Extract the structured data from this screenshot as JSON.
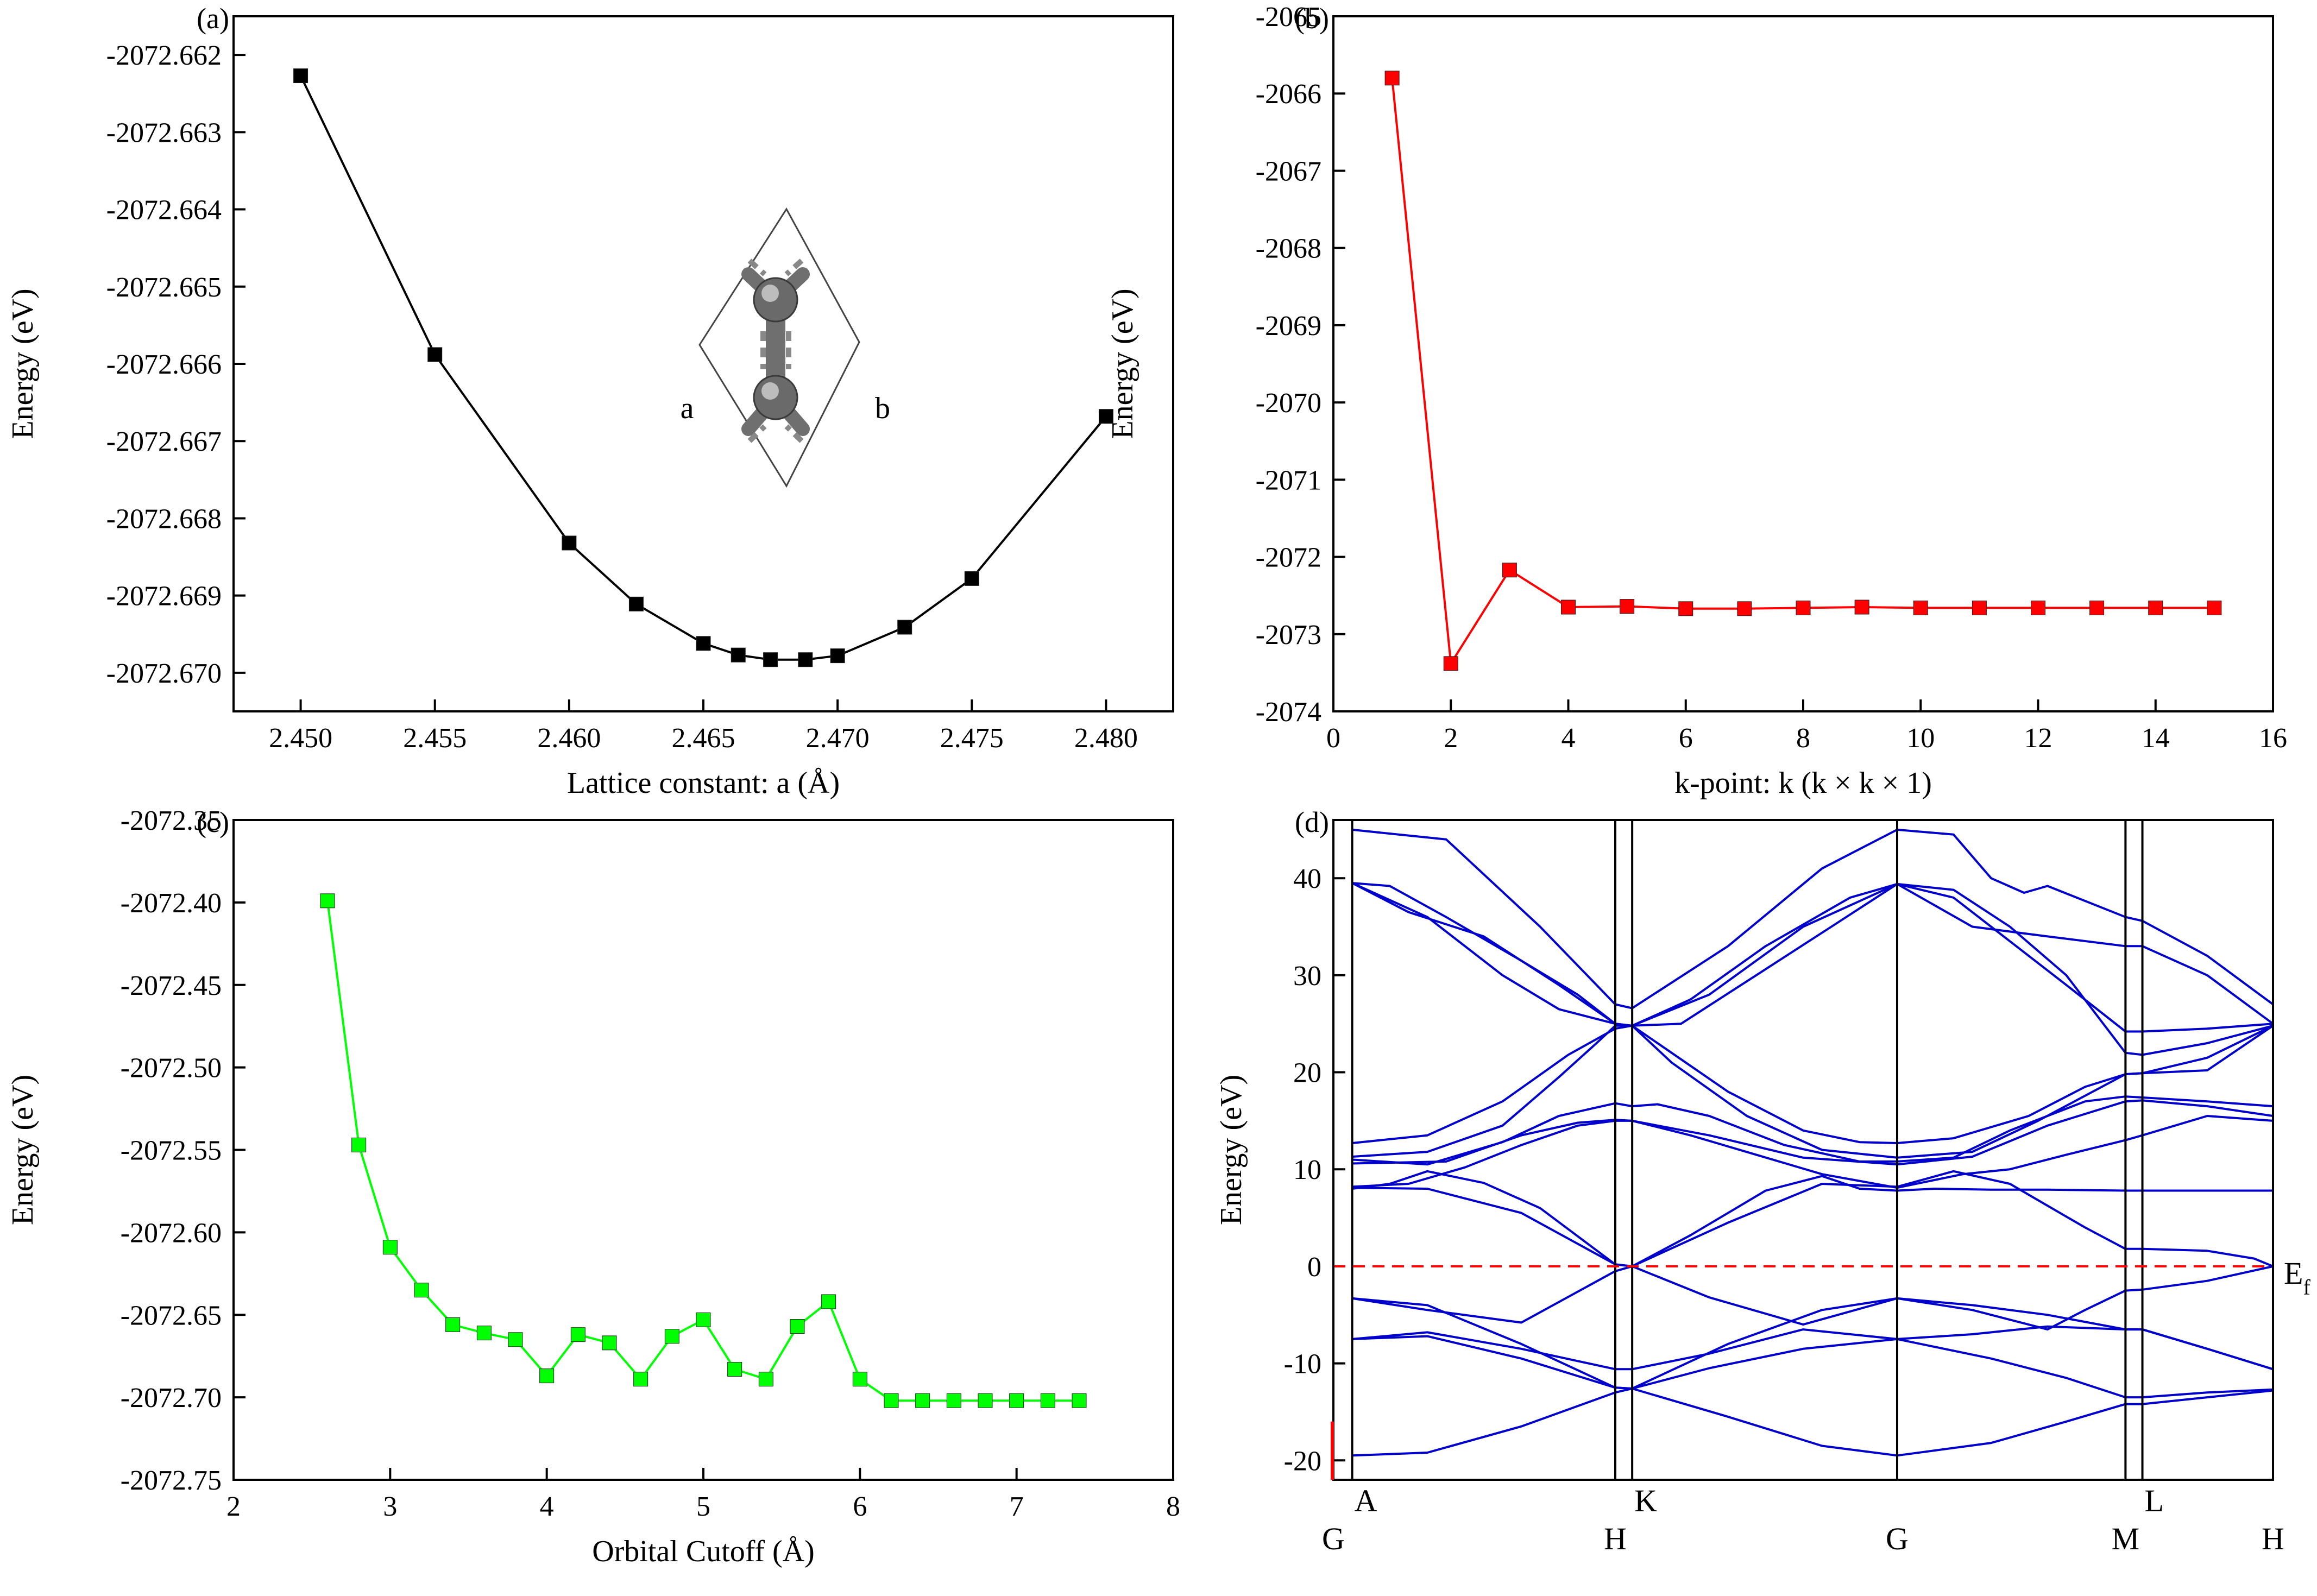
{
  "colors": {
    "panel_a": "#000000",
    "panel_b": "#ff0000",
    "panel_c": "#00ff00",
    "bands": "#0000cc",
    "fermi": "#ff0000"
  },
  "chart_data": [
    {
      "id": "a",
      "panel_label": "(a)",
      "type": "line",
      "marker": "square",
      "xlabel": "Lattice constant: a (Å)",
      "ylabel": "Energy (eV)",
      "xlim": [
        2.4475,
        2.4825
      ],
      "ylim": [
        -2072.6705,
        -2072.6615
      ],
      "xticks": [
        2.45,
        2.455,
        2.46,
        2.465,
        2.47,
        2.475,
        2.48
      ],
      "xtick_labels": [
        "2.450",
        "2.455",
        "2.460",
        "2.465",
        "2.470",
        "2.475",
        "2.480"
      ],
      "yticks": [
        -2072.67,
        -2072.669,
        -2072.668,
        -2072.667,
        -2072.666,
        -2072.665,
        -2072.664,
        -2072.663,
        -2072.662
      ],
      "ytick_labels": [
        "-2072.670",
        "-2072.669",
        "-2072.668",
        "-2072.667",
        "-2072.666",
        "-2072.665",
        "-2072.664",
        "-2072.663",
        "-2072.662"
      ],
      "x": [
        2.45,
        2.455,
        2.46,
        2.4625,
        2.465,
        2.4663,
        2.4675,
        2.4688,
        2.47,
        2.4725,
        2.475,
        2.48
      ],
      "y": [
        -2072.66227,
        -2072.66588,
        -2072.66832,
        -2072.66911,
        -2072.66962,
        -2072.66977,
        -2072.66983,
        -2072.66983,
        -2072.66978,
        -2072.66941,
        -2072.66878,
        -2072.66668
      ],
      "inset_labels": [
        "a",
        "b"
      ]
    },
    {
      "id": "b",
      "panel_label": "(b)",
      "type": "line",
      "marker": "square",
      "xlabel": "k-point: k (k × k × 1)",
      "ylabel": "Energy (eV)",
      "xlim": [
        0,
        16
      ],
      "ylim": [
        -2074,
        -2065
      ],
      "xticks": [
        0,
        2,
        4,
        6,
        8,
        10,
        12,
        14,
        16
      ],
      "xtick_labels": [
        "0",
        "2",
        "4",
        "6",
        "8",
        "10",
        "12",
        "14",
        "16"
      ],
      "yticks": [
        -2074,
        -2073,
        -2072,
        -2071,
        -2070,
        -2069,
        -2068,
        -2067,
        -2066,
        -2065
      ],
      "ytick_labels": [
        "-2074",
        "-2073",
        "-2072",
        "-2071",
        "-2070",
        "-2069",
        "-2068",
        "-2067",
        "-2066",
        "-2065"
      ],
      "x": [
        1,
        2,
        3,
        4,
        5,
        6,
        7,
        8,
        9,
        10,
        11,
        12,
        13,
        14,
        15
      ],
      "y": [
        -2065.8,
        -2073.38,
        -2072.17,
        -2072.65,
        -2072.64,
        -2072.67,
        -2072.67,
        -2072.66,
        -2072.65,
        -2072.66,
        -2072.66,
        -2072.66,
        -2072.66,
        -2072.66,
        -2072.66
      ]
    },
    {
      "id": "c",
      "panel_label": "(c)",
      "type": "line",
      "marker": "square",
      "xlabel": "Orbital Cutoff (Å)",
      "ylabel": "Energy (eV)",
      "xlim": [
        2,
        8
      ],
      "ylim": [
        -2072.75,
        -2072.35
      ],
      "xticks": [
        2,
        3,
        4,
        5,
        6,
        7,
        8
      ],
      "xtick_labels": [
        "2",
        "3",
        "4",
        "5",
        "6",
        "7",
        "8"
      ],
      "yticks": [
        -2072.75,
        -2072.7,
        -2072.65,
        -2072.6,
        -2072.55,
        -2072.5,
        -2072.45,
        -2072.4,
        -2072.35
      ],
      "ytick_labels": [
        "-2072.75",
        "-2072.70",
        "-2072.65",
        "-2072.60",
        "-2072.55",
        "-2072.50",
        "-2072.45",
        "-2072.40",
        "-2072.35"
      ],
      "x": [
        2.6,
        2.8,
        3.0,
        3.2,
        3.4,
        3.6,
        3.8,
        4.0,
        4.2,
        4.4,
        4.6,
        4.8,
        5.0,
        5.2,
        5.4,
        5.6,
        5.8,
        6.0,
        6.2,
        6.4,
        6.6,
        6.8,
        7.0,
        7.2,
        7.4
      ],
      "y": [
        -2072.399,
        -2072.547,
        -2072.609,
        -2072.635,
        -2072.656,
        -2072.661,
        -2072.665,
        -2072.687,
        -2072.662,
        -2072.667,
        -2072.689,
        -2072.663,
        -2072.653,
        -2072.683,
        -2072.689,
        -2072.657,
        -2072.642,
        -2072.689,
        -2072.702,
        -2072.702,
        -2072.702,
        -2072.702,
        -2072.702,
        -2072.702,
        -2072.702
      ]
    },
    {
      "id": "d",
      "panel_label": "(d)",
      "type": "line",
      "subtype": "band-structure",
      "ylabel": "Energy (eV)",
      "xlim": [
        0,
        1
      ],
      "ylim": [
        -22,
        46
      ],
      "yticks": [
        -20,
        -10,
        0,
        10,
        20,
        30,
        40
      ],
      "ytick_labels": [
        "-20",
        "-10",
        "0",
        "10",
        "20",
        "30",
        "40"
      ],
      "path_vertical_lines": [
        0.02,
        0.3,
        0.318,
        0.6,
        0.843,
        0.861
      ],
      "kpoint_labels_top": [
        {
          "label": "A",
          "k": 0.02
        },
        {
          "label": "K",
          "k": 0.318
        },
        {
          "label": "L",
          "k": 0.861
        }
      ],
      "kpoint_labels_bottom": [
        {
          "label": "G",
          "k": 0.0
        },
        {
          "label": "H",
          "k": 0.3
        },
        {
          "label": "G",
          "k": 0.6
        },
        {
          "label": "M",
          "k": 0.843
        },
        {
          "label": "H",
          "k": 1.0
        }
      ],
      "fermi_level": 0,
      "fermi_label": "E",
      "fermi_label_sub": "f",
      "bands": [
        {
          "k": [
            0.02,
            0.12,
            0.22,
            0.3,
            0.318,
            0.42,
            0.52,
            0.6,
            0.66,
            0.7,
            0.735,
            0.76,
            0.843,
            0.861,
            0.93,
            1.0
          ],
          "e": [
            45,
            44,
            35,
            27,
            26.6,
            33,
            41,
            45,
            44.5,
            40,
            38.5,
            39.2,
            36,
            35.6,
            32,
            27
          ]
        },
        {
          "k": [
            0.02,
            0.06,
            0.12,
            0.2,
            0.26,
            0.3,
            0.318,
            0.38,
            0.46,
            0.55,
            0.6,
            0.66,
            0.72,
            0.78,
            0.843,
            0.861,
            0.93,
            1.0
          ],
          "e": [
            39.5,
            39.2,
            36,
            31.5,
            28,
            25,
            24.8,
            27.5,
            33,
            38,
            39.4,
            38,
            33.5,
            29,
            24.2,
            24.2,
            24.5,
            25
          ]
        },
        {
          "k": [
            0.02,
            0.08,
            0.16,
            0.24,
            0.3,
            0.318,
            0.37,
            0.45,
            0.53,
            0.6,
            0.66,
            0.72,
            0.78,
            0.843,
            0.861,
            0.93,
            1.0
          ],
          "e": [
            39.5,
            36.5,
            34,
            29,
            25,
            24.8,
            25,
            30,
            35,
            39.4,
            38.8,
            35,
            30,
            22,
            21.8,
            23,
            24.8
          ]
        },
        {
          "k": [
            0.02,
            0.1,
            0.18,
            0.24,
            0.3,
            0.318,
            0.4,
            0.5,
            0.6,
            0.68,
            0.76,
            0.843,
            0.861,
            0.93,
            1.0
          ],
          "e": [
            39.5,
            36,
            30,
            26.5,
            25,
            24.8,
            28,
            35,
            39.4,
            35,
            34,
            33,
            33,
            30,
            25
          ]
        },
        {
          "k": [
            0.02,
            0.1,
            0.18,
            0.25,
            0.3,
            0.318,
            0.36,
            0.42,
            0.5,
            0.56,
            0.6,
            0.66,
            0.74,
            0.8,
            0.843,
            0.861,
            0.93,
            1.0
          ],
          "e": [
            12.7,
            13.5,
            17,
            21.8,
            24.5,
            24.8,
            22,
            18,
            14,
            12.8,
            12.7,
            13.2,
            15.5,
            18.5,
            19.8,
            19.9,
            20.2,
            24.8
          ]
        },
        {
          "k": [
            0.02,
            0.1,
            0.18,
            0.24,
            0.28,
            0.3,
            0.318,
            0.36,
            0.44,
            0.52,
            0.6,
            0.68,
            0.75,
            0.843,
            0.861,
            0.93,
            1.0
          ],
          "e": [
            11.3,
            11.8,
            14.5,
            19.5,
            23,
            24.8,
            24.8,
            21,
            15.5,
            12,
            11.2,
            11.8,
            15,
            19.8,
            19.9,
            21.5,
            24.8
          ]
        },
        {
          "k": [
            0.02,
            0.1,
            0.18,
            0.24,
            0.3,
            0.318,
            0.345,
            0.4,
            0.48,
            0.56,
            0.6,
            0.66,
            0.72,
            0.8,
            0.843,
            0.861,
            0.93,
            1.0
          ],
          "e": [
            11,
            10.5,
            12.8,
            15.5,
            16.8,
            16.5,
            16.7,
            15.5,
            12.5,
            10.8,
            10.8,
            11.2,
            14,
            17,
            17.5,
            17.4,
            17,
            16.5
          ]
        },
        {
          "k": [
            0.02,
            0.12,
            0.2,
            0.26,
            0.3,
            0.318,
            0.4,
            0.5,
            0.6,
            0.68,
            0.76,
            0.843,
            0.861,
            0.93,
            1.0
          ],
          "e": [
            10.6,
            10.8,
            13.5,
            14.8,
            15.1,
            15,
            13.5,
            11.2,
            10.5,
            11.3,
            14.5,
            17,
            17.1,
            16.5,
            15.5
          ]
        },
        {
          "k": [
            0.02,
            0.08,
            0.14,
            0.2,
            0.26,
            0.3,
            0.318,
            0.38,
            0.45,
            0.52,
            0.6,
            0.67,
            0.72,
            0.78,
            0.843,
            0.861,
            0.93,
            1.0
          ],
          "e": [
            8.2,
            8.5,
            10.2,
            12.5,
            14.5,
            15,
            15,
            13.5,
            11.5,
            9.5,
            8.1,
            9.5,
            10,
            11.5,
            13,
            13.5,
            15.5,
            15
          ]
        },
        {
          "k": [
            0.02,
            0.06,
            0.1,
            0.16,
            0.22,
            0.3,
            0.318,
            0.38,
            0.46,
            0.52,
            0.56,
            0.6,
            0.64,
            0.7,
            0.76,
            0.843,
            0.861,
            0.93,
            1.0
          ],
          "e": [
            8,
            8.5,
            9.8,
            8.6,
            6,
            0.2,
            0,
            3.2,
            7.8,
            9.3,
            8,
            7.8,
            8,
            7.9,
            7.9,
            7.8,
            7.8,
            7.8,
            7.8
          ]
        },
        {
          "k": [
            0.02,
            0.1,
            0.2,
            0.3,
            0.318,
            0.42,
            0.52,
            0.6,
            0.66,
            0.72,
            0.8,
            0.843,
            0.861,
            0.93,
            0.98,
            1.0
          ],
          "e": [
            8.1,
            8.0,
            5.5,
            0.2,
            0,
            4.5,
            8.5,
            8.2,
            9.8,
            8.5,
            4,
            1.8,
            1.8,
            1.6,
            0.8,
            0
          ]
        },
        {
          "k": [
            0.02,
            0.1,
            0.2,
            0.3,
            0.318,
            0.42,
            0.52,
            0.6,
            0.68,
            0.76,
            0.843,
            0.861,
            0.93,
            1.0
          ],
          "e": [
            -3.3,
            -4,
            -8,
            -12.5,
            -12.6,
            -8,
            -4.5,
            -3.3,
            -4,
            -5,
            -6.5,
            -6.5,
            -8.5,
            -10.6
          ]
        },
        {
          "k": [
            0.02,
            0.1,
            0.2,
            0.3,
            0.318,
            0.4,
            0.5,
            0.6,
            0.68,
            0.76,
            0.8,
            0.843,
            0.861,
            0.93,
            1.0
          ],
          "e": [
            -3.3,
            -4.5,
            -5.8,
            -0.5,
            0,
            -3.2,
            -6,
            -3.3,
            -4.5,
            -6.5,
            -4.5,
            -2.5,
            -2.4,
            -1.5,
            0
          ]
        },
        {
          "k": [
            0.02,
            0.1,
            0.2,
            0.3,
            0.318,
            0.4,
            0.5,
            0.6,
            0.68,
            0.76,
            0.843,
            0.861,
            0.93,
            1.0
          ],
          "e": [
            -7.5,
            -6.8,
            -8.5,
            -10.6,
            -10.6,
            -9,
            -6.5,
            -7.5,
            -7,
            -6.2,
            -6.5,
            -6.5,
            -8.5,
            -10.6
          ]
        },
        {
          "k": [
            0.02,
            0.1,
            0.2,
            0.3,
            0.318,
            0.42,
            0.52,
            0.6,
            0.7,
            0.78,
            0.843,
            0.861,
            0.93,
            1.0
          ],
          "e": [
            -19.5,
            -19.2,
            -16.5,
            -13,
            -12.6,
            -15.5,
            -18.5,
            -19.5,
            -18.2,
            -16,
            -14.2,
            -14.2,
            -13.5,
            -12.8
          ]
        },
        {
          "k": [
            0.02,
            0.1,
            0.2,
            0.3,
            0.318,
            0.4,
            0.5,
            0.6,
            0.7,
            0.78,
            0.843,
            0.861,
            0.93,
            1.0
          ],
          "e": [
            -7.5,
            -7.2,
            -9.5,
            -12.5,
            -12.6,
            -10.5,
            -8.5,
            -7.5,
            -9.5,
            -11.5,
            -13.5,
            -13.5,
            -13,
            -12.7
          ]
        }
      ]
    }
  ]
}
